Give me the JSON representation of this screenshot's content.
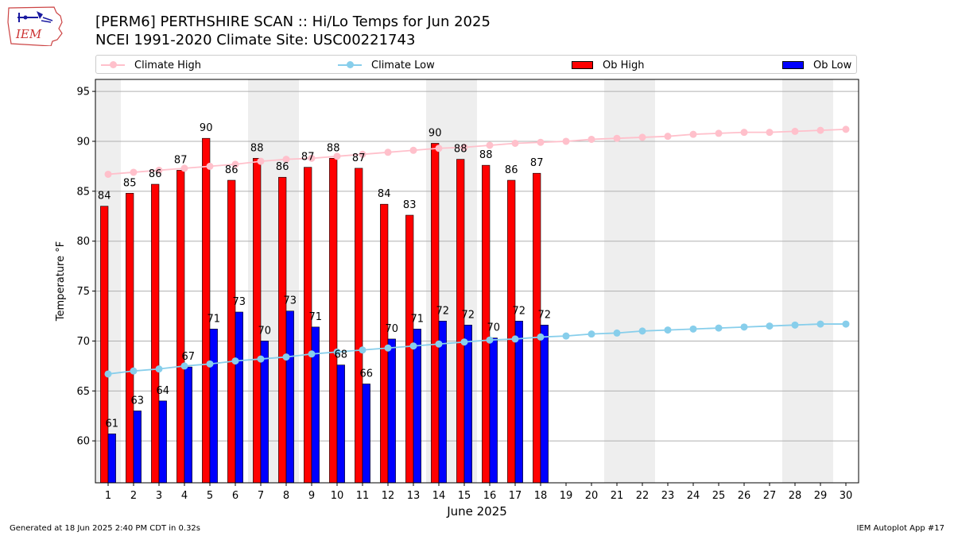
{
  "header": {
    "logo_text": "IEM",
    "title": "[PERM6] PERTHSHIRE SCAN :: Hi/Lo Temps for Jun 2025",
    "subtitle": "NCEI 1991-2020 Climate Site: USC00221743"
  },
  "legend": {
    "climate_high": "Climate High",
    "climate_low": "Climate Low",
    "ob_high": "Ob High",
    "ob_low": "Ob Low"
  },
  "colors": {
    "climate_high": "#ffc0cb",
    "climate_low": "#87ceeb",
    "ob_high": "#ff0000",
    "ob_low": "#0000ff",
    "weekend_shade": "#eeeeee",
    "grid": "#b0b0b0"
  },
  "footer": {
    "left": "Generated at 18 Jun 2025 2:40 PM CDT in 0.32s",
    "right": "IEM Autoplot App #17"
  },
  "chart_data": {
    "type": "bar",
    "xlabel": "June 2025",
    "ylabel": "Temperature °F",
    "ylim": [
      55.8,
      96.2
    ],
    "yticks": [
      60,
      65,
      70,
      75,
      80,
      85,
      90,
      95
    ],
    "grid": true,
    "legend_position": "top",
    "categories": [
      "1",
      "2",
      "3",
      "4",
      "5",
      "6",
      "7",
      "8",
      "9",
      "10",
      "11",
      "12",
      "13",
      "14",
      "15",
      "16",
      "17",
      "18",
      "19",
      "20",
      "21",
      "22",
      "23",
      "24",
      "25",
      "26",
      "27",
      "28",
      "29",
      "30"
    ],
    "shaded_days": [
      1,
      7,
      8,
      14,
      15,
      21,
      22,
      28,
      29
    ],
    "ob_high": {
      "name": "Ob High",
      "values": [
        83.5,
        84.8,
        85.7,
        87.1,
        90.3,
        86.1,
        88.3,
        86.4,
        87.4,
        88.3,
        87.3,
        83.7,
        82.6,
        89.8,
        88.2,
        87.6,
        86.1,
        86.8
      ],
      "labels": [
        "84",
        "85",
        "86",
        "87",
        "90",
        "86",
        "88",
        "86",
        "87",
        "88",
        "87",
        "84",
        "83",
        "90",
        "88",
        "88",
        "86",
        "87"
      ]
    },
    "ob_low": {
      "name": "Ob Low",
      "values": [
        60.7,
        63.0,
        64.0,
        67.4,
        71.2,
        72.9,
        70.0,
        73.0,
        71.4,
        67.6,
        65.7,
        70.2,
        71.2,
        72.0,
        71.6,
        70.3,
        72.0,
        71.6
      ],
      "labels": [
        "61",
        "63",
        "64",
        "67",
        "71",
        "73",
        "70",
        "73",
        "71",
        "68",
        "66",
        "70",
        "71",
        "72",
        "72",
        "70",
        "72",
        "72"
      ]
    },
    "climate_high": {
      "name": "Climate High",
      "values": [
        86.7,
        86.9,
        87.1,
        87.3,
        87.5,
        87.7,
        88.0,
        88.2,
        88.3,
        88.5,
        88.7,
        88.9,
        89.1,
        89.3,
        89.4,
        89.6,
        89.8,
        89.9,
        90.0,
        90.2,
        90.3,
        90.4,
        90.5,
        90.7,
        90.8,
        90.9,
        90.9,
        91.0,
        91.1,
        91.2
      ]
    },
    "climate_low": {
      "name": "Climate Low",
      "values": [
        66.7,
        67.0,
        67.2,
        67.5,
        67.7,
        68.0,
        68.2,
        68.4,
        68.7,
        68.9,
        69.1,
        69.3,
        69.5,
        69.7,
        69.9,
        70.1,
        70.2,
        70.4,
        70.5,
        70.7,
        70.8,
        71.0,
        71.1,
        71.2,
        71.3,
        71.4,
        71.5,
        71.6,
        71.7,
        71.7
      ]
    }
  }
}
